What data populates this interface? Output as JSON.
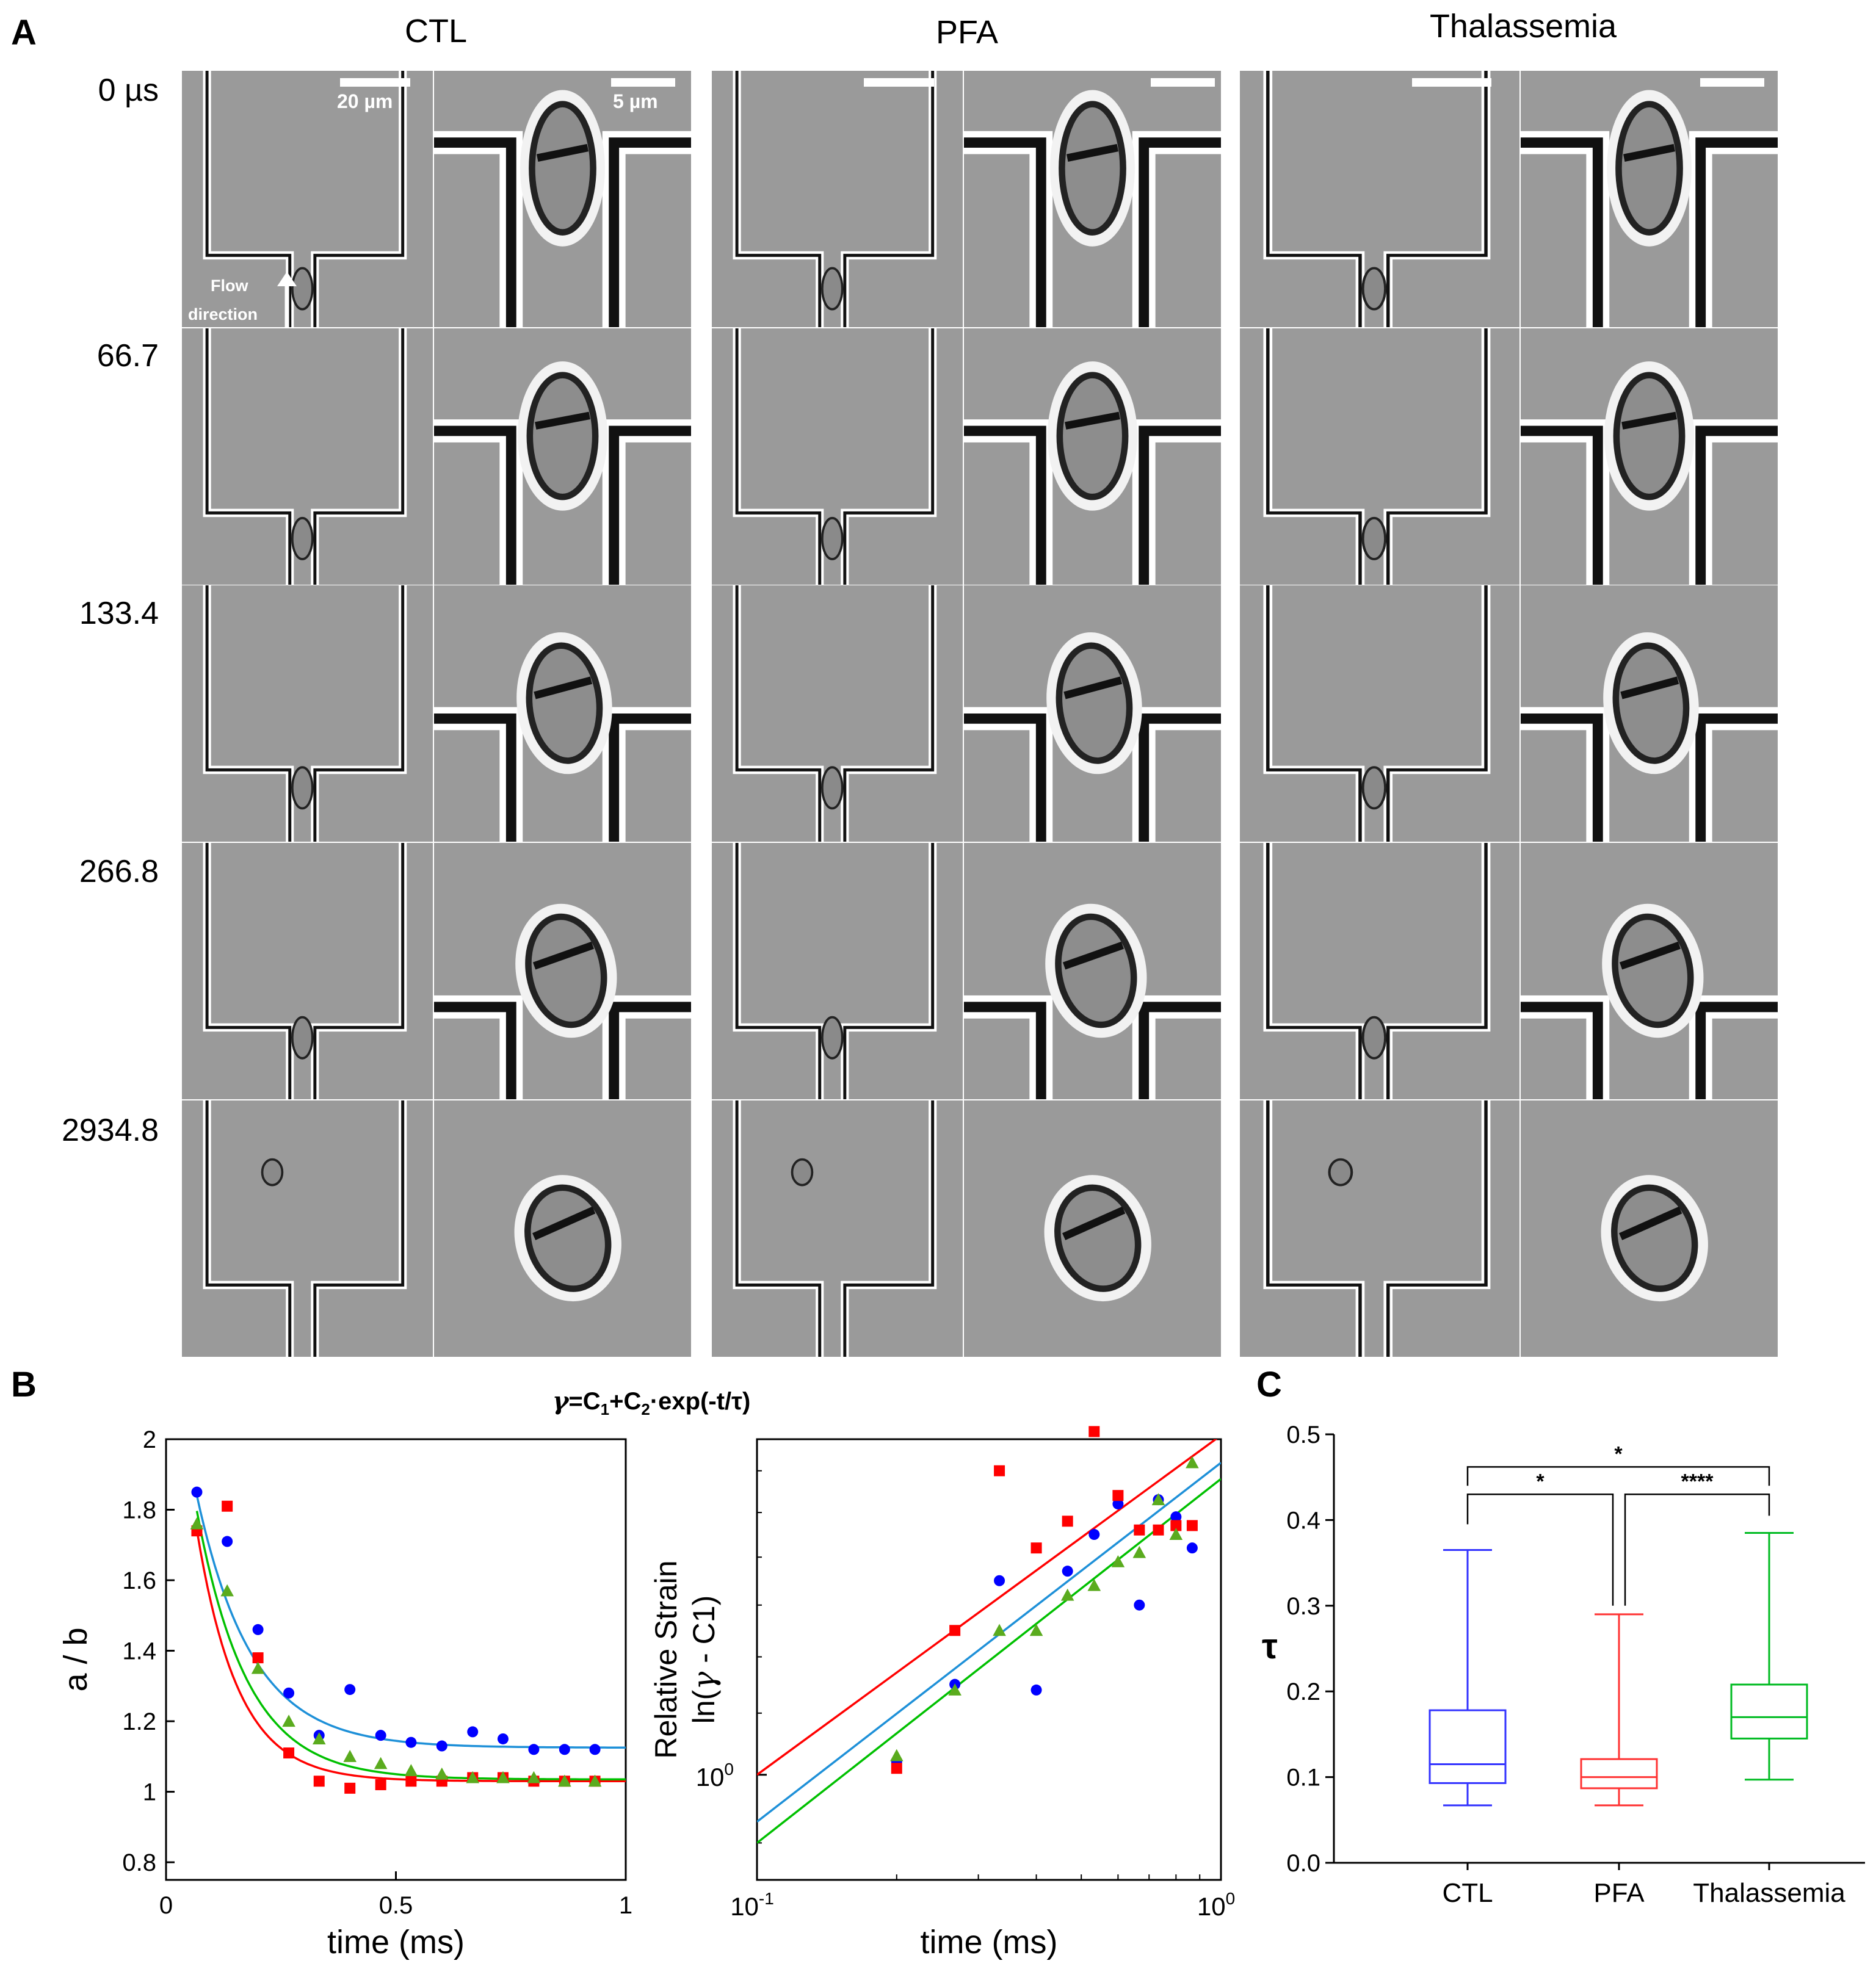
{
  "figure": {
    "panel_a": {
      "letter": "A",
      "columns": [
        "CTL",
        "PFA",
        "Thalassemia"
      ],
      "time_labels": [
        "0 µs",
        "66.7",
        "133.4",
        "266.8",
        "2934.8"
      ],
      "scale_wide": "20 µm",
      "scale_zoom": "5 µm",
      "flow_label_line1": "Flow",
      "flow_label_line2": "direction"
    },
    "panel_b": {
      "letter": "B",
      "equation_gamma": "γ",
      "equation_rest": "=C",
      "equation_sub1": "1",
      "equation_plus": "+C",
      "equation_sub2": "2",
      "equation_tail": "·exp(-t/τ)"
    },
    "panel_c": {
      "letter": "C"
    },
    "colors": {
      "ctl": "#0000ff",
      "ctl_fit": "#1e90d8",
      "pfa": "#ff0000",
      "thal": "#5aab1e",
      "thal_fit": "#00c000",
      "box_ctl": "#3333ff",
      "box_pfa": "#ff3333",
      "box_thal": "#00bb22"
    }
  },
  "chart_data": [
    {
      "id": "b-left",
      "type": "scatter",
      "xlabel": "time (ms)",
      "ylabel": "a / b",
      "xlim": [
        0,
        1
      ],
      "ylim": [
        0.75,
        2
      ],
      "xticks": [
        "0",
        "0.5",
        "1"
      ],
      "yticks": [
        "0.8",
        "1",
        "1.2",
        "1.4",
        "1.6",
        "1.8",
        "2"
      ],
      "series": [
        {
          "key": "ctl",
          "marker": "circle",
          "x": [
            0.067,
            0.133,
            0.2,
            0.267,
            0.333,
            0.4,
            0.467,
            0.533,
            0.6,
            0.667,
            0.733,
            0.8,
            0.867,
            0.933
          ],
          "y": [
            1.85,
            1.71,
            1.46,
            1.28,
            1.16,
            1.29,
            1.16,
            1.14,
            1.13,
            1.17,
            1.15,
            1.12,
            1.12,
            1.12
          ],
          "fit": {
            "c1": 1.125,
            "c2": 1.25,
            "tau": 0.12
          }
        },
        {
          "key": "pfa",
          "marker": "square",
          "x": [
            0.067,
            0.133,
            0.2,
            0.267,
            0.333,
            0.4,
            0.467,
            0.533,
            0.6,
            0.667,
            0.733,
            0.8,
            0.867,
            0.933
          ],
          "y": [
            1.74,
            1.81,
            1.38,
            1.11,
            1.03,
            1.01,
            1.02,
            1.03,
            1.03,
            1.04,
            1.04,
            1.03,
            1.03,
            1.03
          ],
          "fit": {
            "c1": 1.03,
            "c2": 1.5,
            "tau": 0.09
          }
        },
        {
          "key": "thal",
          "marker": "triangle",
          "x": [
            0.067,
            0.133,
            0.2,
            0.267,
            0.333,
            0.4,
            0.467,
            0.533,
            0.6,
            0.667,
            0.733,
            0.8,
            0.867,
            0.933
          ],
          "y": [
            1.76,
            1.57,
            1.35,
            1.2,
            1.15,
            1.1,
            1.08,
            1.06,
            1.05,
            1.04,
            1.04,
            1.04,
            1.03,
            1.03
          ],
          "fit": {
            "c1": 1.035,
            "c2": 1.4,
            "tau": 0.11
          }
        }
      ]
    },
    {
      "id": "b-right",
      "type": "scatter",
      "xlabel": "time (ms)",
      "ylabel_line1": "Relative Strain",
      "ylabel_line2_a": "ln(",
      "ylabel_line2_gamma": "γ",
      "ylabel_line2_b": " - C1)",
      "xscale": "log",
      "yscale": "log",
      "xlim": [
        0.1,
        1
      ],
      "ylim": [
        0.85,
        1.68
      ],
      "xtick_base": "10",
      "xtick_exps": [
        "-1",
        "0"
      ],
      "ytick_base": "10",
      "ytick_exp": "0",
      "series": [
        {
          "key": "ctl",
          "marker": "circle",
          "x": [
            0.2,
            0.267,
            0.333,
            0.4,
            0.467,
            0.533,
            0.6,
            0.667,
            0.733,
            0.8,
            0.867
          ],
          "y": [
            1.02,
            1.15,
            1.35,
            1.14,
            1.37,
            1.45,
            1.52,
            1.3,
            1.53,
            1.49,
            1.42
          ]
        },
        {
          "key": "pfa",
          "marker": "square",
          "x": [
            0.2,
            0.267,
            0.333,
            0.4,
            0.467,
            0.533,
            0.6,
            0.667,
            0.733,
            0.8,
            0.867
          ],
          "y": [
            1.01,
            1.25,
            1.6,
            1.42,
            1.48,
            1.7,
            1.54,
            1.46,
            1.46,
            1.47,
            1.47
          ]
        },
        {
          "key": "thal",
          "marker": "triangle",
          "x": [
            0.2,
            0.267,
            0.333,
            0.4,
            0.467,
            0.533,
            0.6,
            0.667,
            0.733,
            0.8,
            0.867
          ],
          "y": [
            1.03,
            1.14,
            1.25,
            1.25,
            1.32,
            1.34,
            1.39,
            1.41,
            1.53,
            1.45,
            1.62
          ]
        }
      ],
      "fit_lines": [
        {
          "key": "pfa",
          "x": [
            0.1,
            1
          ],
          "y": [
            1.0,
            1.69
          ]
        },
        {
          "key": "ctl",
          "x": [
            0.1,
            1
          ],
          "y": [
            0.93,
            1.62
          ]
        },
        {
          "key": "thal",
          "x": [
            0.1,
            1
          ],
          "y": [
            0.9,
            1.58
          ]
        }
      ]
    },
    {
      "id": "c",
      "type": "box",
      "ylabel": "τ",
      "ylim": [
        0,
        0.5
      ],
      "yticks": [
        "0.0",
        "0.1",
        "0.2",
        "0.3",
        "0.4",
        "0.5"
      ],
      "categories": [
        "CTL",
        "PFA",
        "Thalassemia"
      ],
      "boxes": [
        {
          "key": "box_ctl",
          "min": 0.067,
          "q1": 0.093,
          "median": 0.115,
          "q3": 0.178,
          "max": 0.365
        },
        {
          "key": "box_pfa",
          "min": 0.067,
          "q1": 0.087,
          "median": 0.1,
          "q3": 0.121,
          "max": 0.29
        },
        {
          "key": "box_thal",
          "min": 0.097,
          "q1": 0.145,
          "median": 0.17,
          "q3": 0.208,
          "max": 0.385
        }
      ],
      "significance": [
        {
          "from": 0,
          "to": 2,
          "label": "*"
        },
        {
          "from": 0,
          "to": 1,
          "label": "*"
        },
        {
          "from": 1,
          "to": 2,
          "label": "****"
        }
      ]
    }
  ]
}
